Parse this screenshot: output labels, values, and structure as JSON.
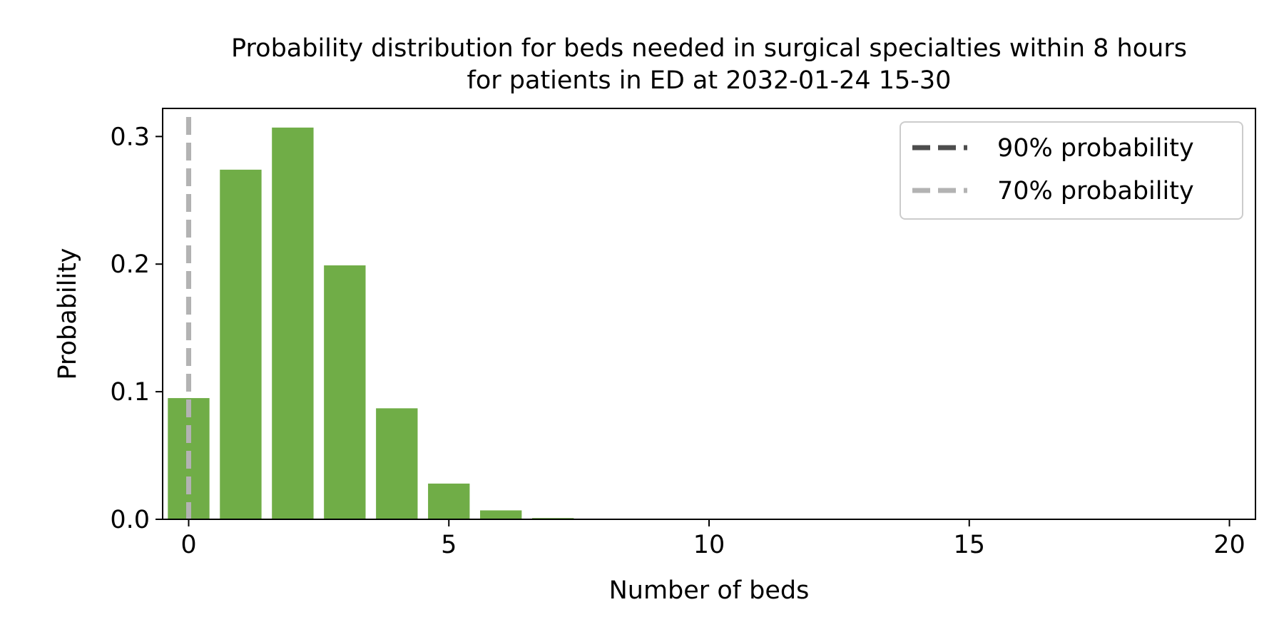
{
  "chart_data": {
    "type": "bar",
    "title": "Probability distribution for beds needed in surgical specialties within 8 hours\nfor patients in ED at 2032-01-24 15-30",
    "xlabel": "Number of beds",
    "ylabel": "Probability",
    "x": [
      0,
      1,
      2,
      3,
      4,
      5,
      6,
      7,
      8,
      9,
      10,
      11,
      12,
      13,
      14,
      15,
      16,
      17,
      18,
      19,
      20
    ],
    "values": [
      0.095,
      0.274,
      0.307,
      0.199,
      0.087,
      0.028,
      0.007,
      0.001,
      0,
      0,
      0,
      0,
      0,
      0,
      0,
      0,
      0,
      0,
      0,
      0,
      0
    ],
    "xlim": [
      -0.5,
      20.5
    ],
    "ylim": [
      0,
      0.322
    ],
    "xticks": [
      0,
      5,
      10,
      15,
      20
    ],
    "xtick_labels": [
      "0",
      "5",
      "10",
      "15",
      "20"
    ],
    "yticks": [
      0.0,
      0.1,
      0.2,
      0.3
    ],
    "ytick_labels": [
      "0.0",
      "0.1",
      "0.2",
      "0.3"
    ],
    "bar_color": "#70ad47",
    "grid": false,
    "legend_position": "top-right",
    "reference_lines": [
      {
        "label": "90% probability",
        "x": 0,
        "color": "#4d4d4d",
        "style": "dashed"
      },
      {
        "label": "70% probability",
        "x": 0,
        "color": "#b3b3b3",
        "style": "dashed"
      }
    ]
  }
}
